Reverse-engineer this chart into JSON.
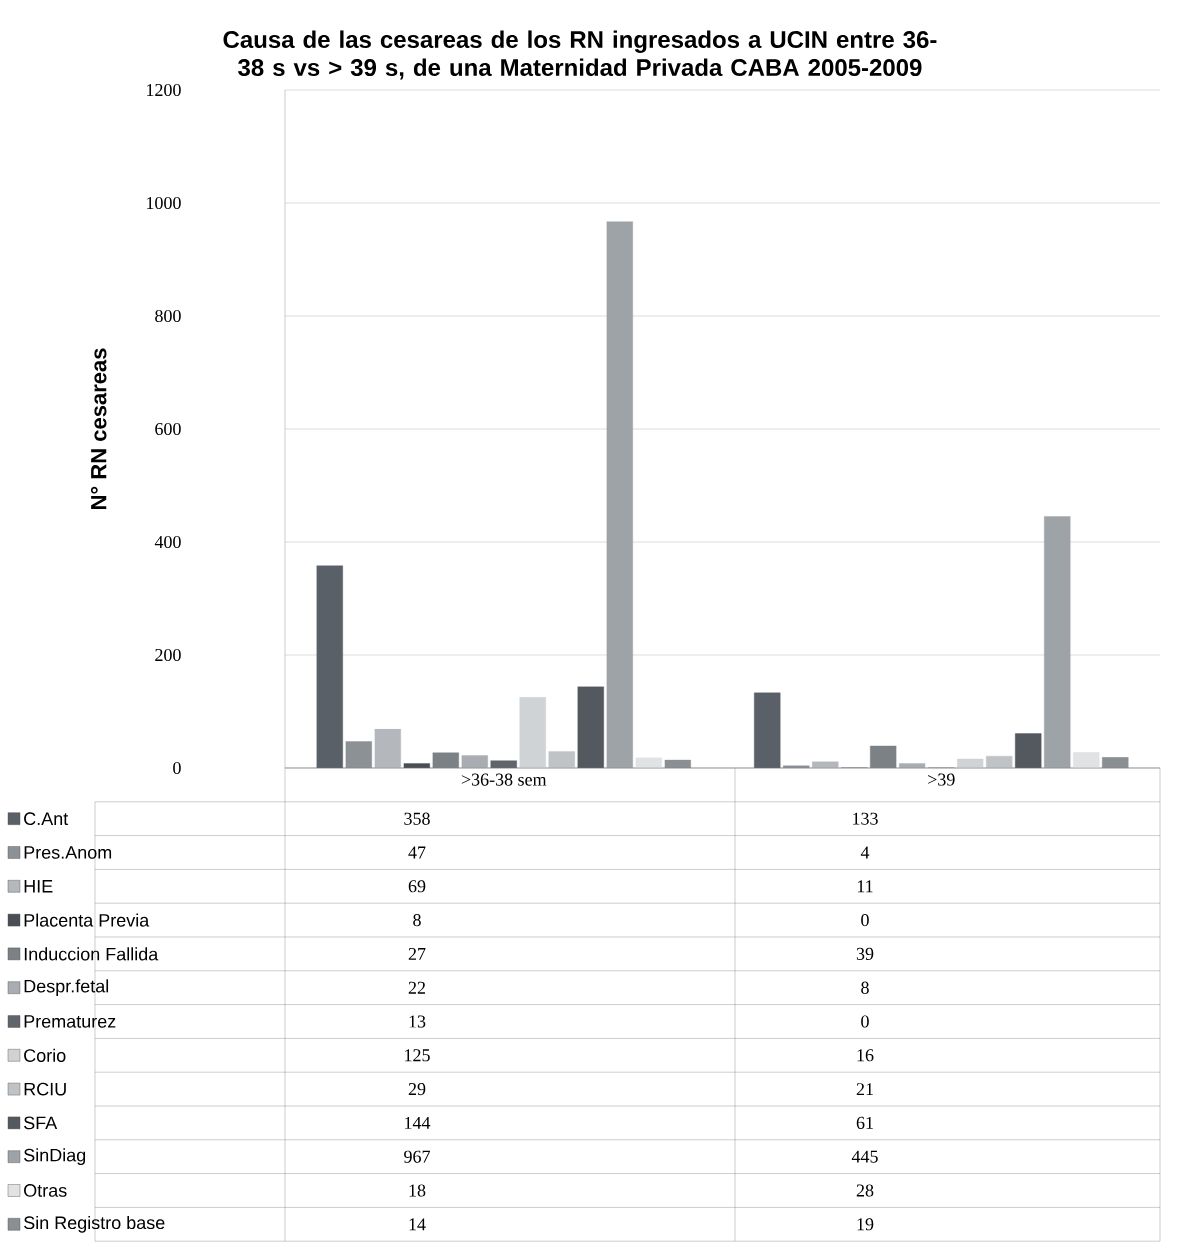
{
  "chart_data": {
    "type": "bar",
    "title": "Causa de las cesareas de los RN ingresados a UCIN entre 36-38 s vs > 39 s, de una Maternidad Privada CABA 2005-2009",
    "ylabel": "N° RN cesareas",
    "categories": [
      ">36-38 sem",
      ">39"
    ],
    "series": [
      {
        "name": "C.Ant",
        "color": "#5a6068",
        "values": [
          358,
          133
        ]
      },
      {
        "name": "Pres.Anom",
        "color": "#8c9196",
        "values": [
          47,
          4
        ]
      },
      {
        "name": "HIE",
        "color": "#b4b8bc",
        "values": [
          69,
          11
        ]
      },
      {
        "name": "Placenta Previa",
        "color": "#4a4f55",
        "values": [
          8,
          0
        ]
      },
      {
        "name": "Induccion Fallida",
        "color": "#7c8186",
        "values": [
          27,
          39
        ]
      },
      {
        "name": "Despr.fetal",
        "color": "#a9adb1",
        "values": [
          22,
          8
        ]
      },
      {
        "name": "Prematurez",
        "color": "#60656b",
        "values": [
          13,
          0
        ]
      },
      {
        "name": "Corio",
        "color": "#d0d3d6",
        "values": [
          125,
          16
        ]
      },
      {
        "name": "RCIU",
        "color": "#c0c3c6",
        "values": [
          29,
          21
        ]
      },
      {
        "name": "SFA",
        "color": "#54595f",
        "values": [
          144,
          61
        ]
      },
      {
        "name": "SinDiag",
        "color": "#9ea3a8",
        "values": [
          967,
          445
        ]
      },
      {
        "name": "Otras",
        "color": "#e0e2e4",
        "values": [
          18,
          28
        ]
      },
      {
        "name": "Sin Registro base",
        "color": "#8a8f94",
        "values": [
          14,
          19
        ]
      }
    ],
    "ylim": [
      0,
      1200
    ],
    "yticks": [
      0,
      200,
      400,
      600,
      800,
      1000,
      1200
    ],
    "grid": "y",
    "legend": "bottom left",
    "data_labels": true
  }
}
